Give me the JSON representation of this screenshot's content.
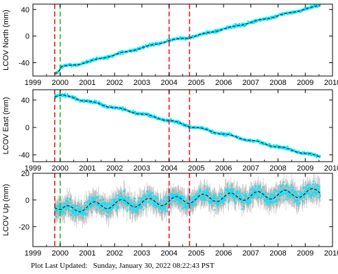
{
  "footer": {
    "label": "Plot Last Updated:",
    "timestamp": "Sunday, January 30, 2022 08:22:43 PST"
  },
  "colors": {
    "observations": "#00e5ff",
    "error_bars": "#b4b4b4",
    "trend": "#000000",
    "red_lines": "#e8141e",
    "green_lines": "#22bb22"
  },
  "chart_data": [
    {
      "type": "scatter",
      "ylabel": "LCOV North (mm)",
      "xlim": [
        1999,
        2010
      ],
      "ylim": [
        -60,
        48
      ],
      "xticks": [
        1999,
        2000,
        2001,
        2002,
        2003,
        2004,
        2005,
        2006,
        2007,
        2008,
        2009,
        2010
      ],
      "yticks": [
        -40,
        0,
        40
      ],
      "red_vlines": [
        1999.8,
        2004.0,
        2004.75
      ],
      "green_vlines": [
        2000.0
      ],
      "trend": {
        "x": [
          1999.8,
          1999.95,
          2000.05,
          2000.6,
          2004.0,
          2004.75,
          2009.55
        ],
        "y": [
          -56,
          -53,
          -46,
          -43,
          -7,
          -2,
          46
        ]
      },
      "scatter_pts": 1.6,
      "err_pts": 1.0,
      "seasonal_amp": 0.8
    },
    {
      "type": "scatter",
      "ylabel": "LCOV East (mm)",
      "xlim": [
        1999,
        2010
      ],
      "ylim": [
        -50,
        55
      ],
      "xticks": [
        1999,
        2000,
        2001,
        2002,
        2003,
        2004,
        2005,
        2006,
        2007,
        2008,
        2009,
        2010
      ],
      "yticks": [
        -40,
        0,
        40
      ],
      "red_vlines": [
        1999.8,
        2004.0,
        2004.75
      ],
      "green_vlines": [
        2000.0
      ],
      "trend": {
        "x": [
          1999.8,
          2000.05,
          2000.5,
          2004.0,
          2004.75,
          2009.55
        ],
        "y": [
          46,
          47,
          43,
          10,
          2,
          -43
        ]
      },
      "scatter_pts": 1.6,
      "err_pts": 1.0,
      "seasonal_amp": 1.2
    },
    {
      "type": "scatter",
      "ylabel": "LCOV Up (mm)",
      "xlim": [
        1999,
        2010
      ],
      "ylim": [
        -35,
        20
      ],
      "xticks": [
        1999,
        2000,
        2001,
        2002,
        2003,
        2004,
        2005,
        2006,
        2007,
        2008,
        2009,
        2010
      ],
      "yticks": [
        -20,
        0,
        20
      ],
      "red_vlines": [
        1999.8,
        2004.0,
        2004.75
      ],
      "green_vlines": [
        2000.0
      ],
      "trend": {
        "x": [
          1999.8,
          1999.95,
          2000.05,
          2001,
          2002,
          2003,
          2004,
          2005,
          2006,
          2007,
          2008,
          2009,
          2009.55
        ],
        "y": [
          -3,
          -6,
          -8,
          -5,
          -3,
          -2,
          -1,
          1,
          2,
          3,
          4,
          5,
          6
        ]
      },
      "scatter_pts": 4.0,
      "err_pts": 6.0,
      "seasonal_amp": 3.0
    }
  ]
}
